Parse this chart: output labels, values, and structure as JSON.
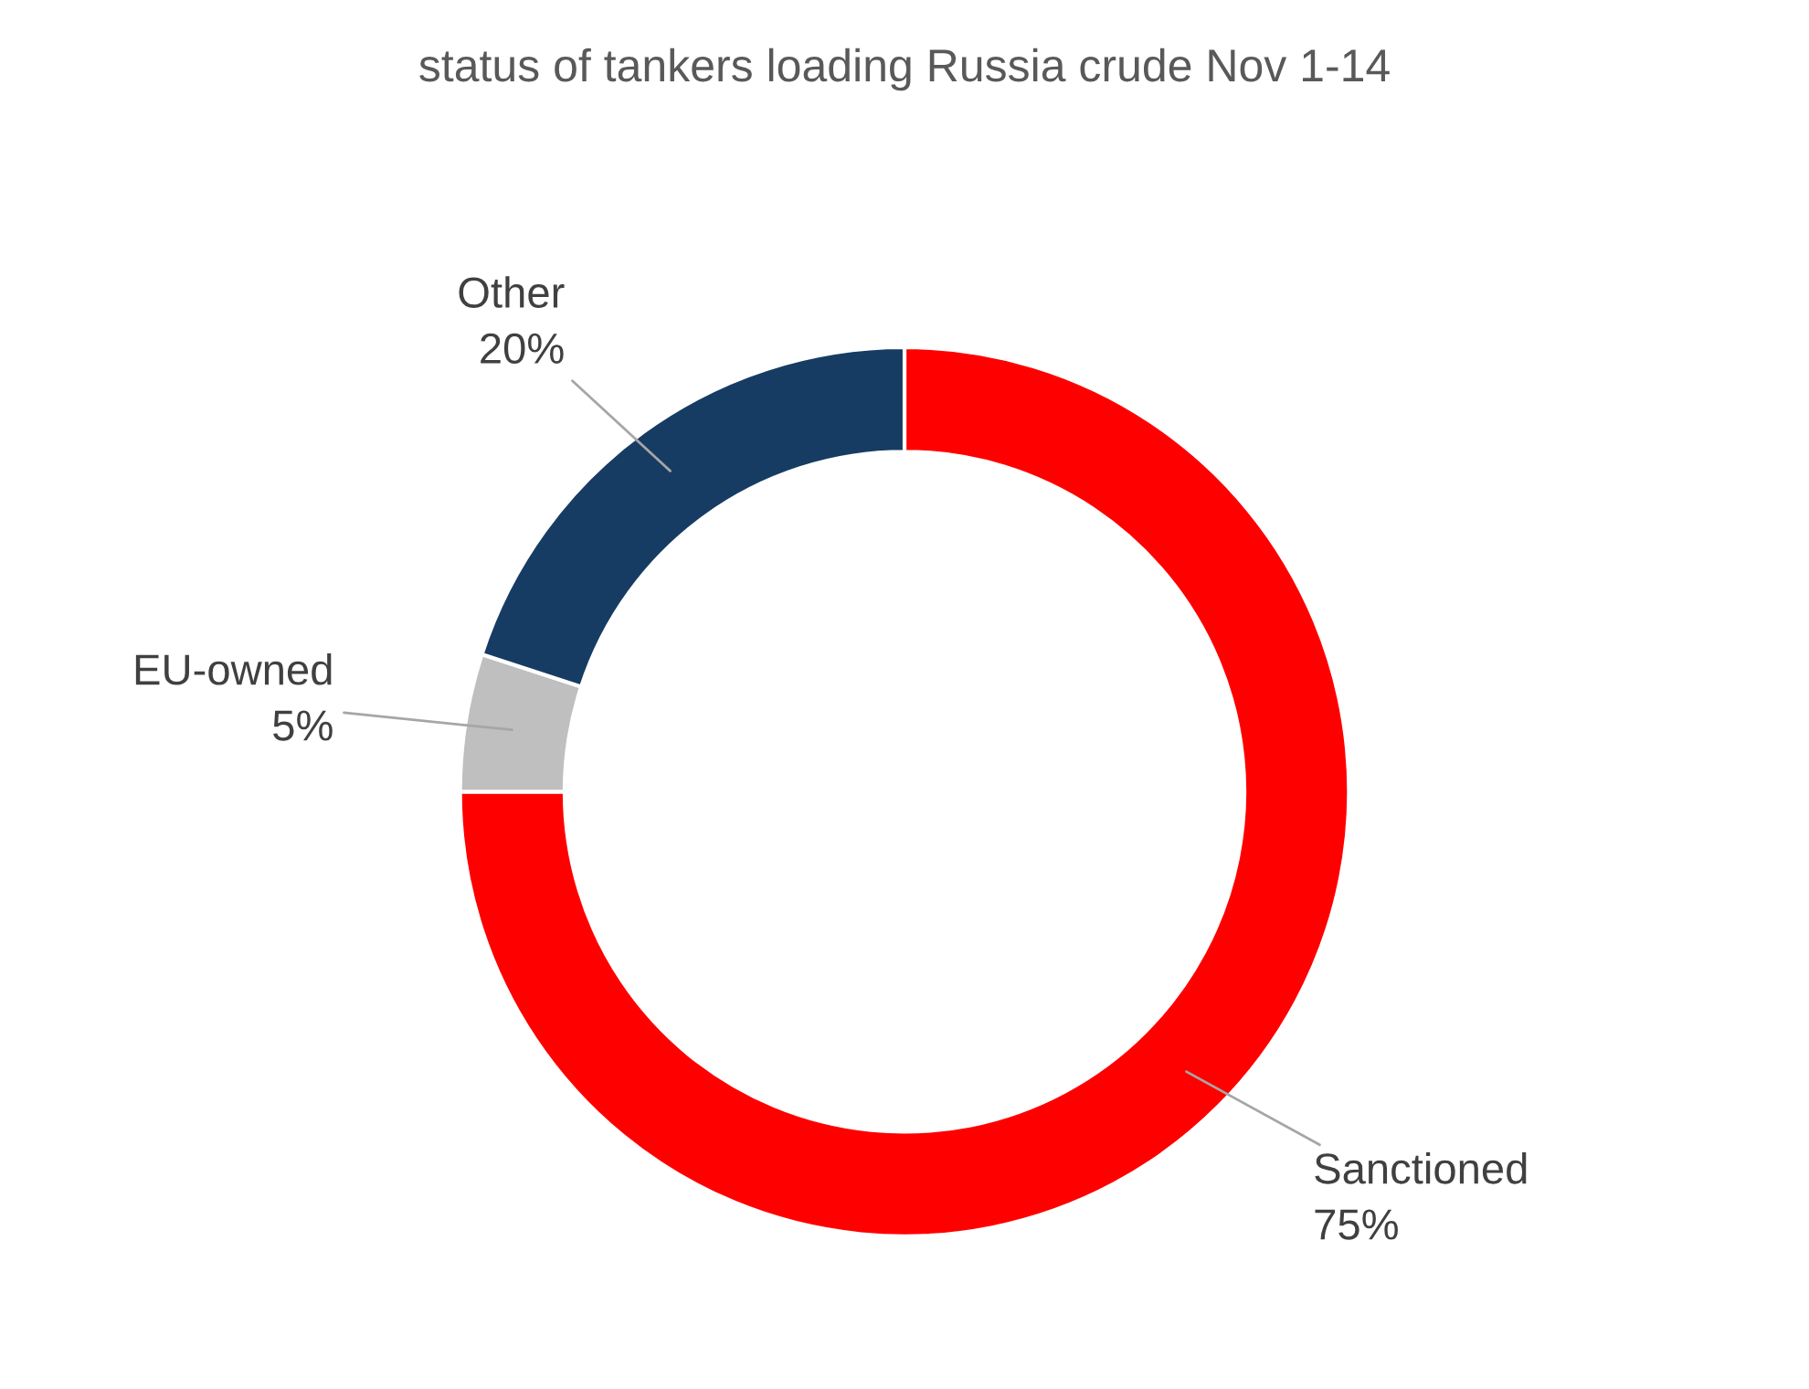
{
  "chart_data": {
    "type": "donut",
    "title": "status of tankers loading Russia crude Nov 1-14",
    "categories": [
      "Sanctioned",
      "EU-owned",
      "Other"
    ],
    "values": [
      75,
      5,
      20
    ],
    "colors": [
      "#ff0000",
      "#bfbfbf",
      "#173c63"
    ],
    "value_labels": [
      "75%",
      "5%",
      "20%"
    ],
    "legend": false
  }
}
